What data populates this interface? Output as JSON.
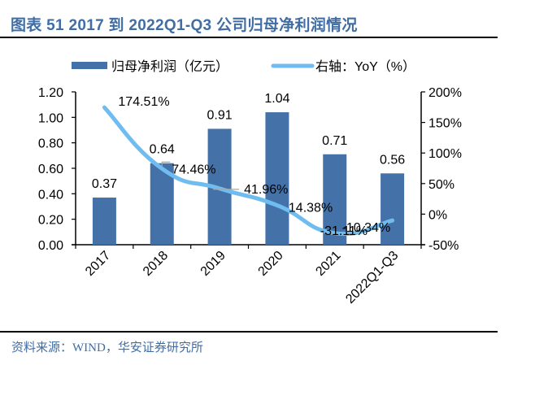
{
  "header": {
    "title": "图表 51 2017 到 2022Q1-Q3 公司归母净利润情况"
  },
  "footer": {
    "source": "资料来源：WIND，华安证券研究所"
  },
  "colors": {
    "bar": "#4472a8",
    "line": "#6fbdf0",
    "title": "#3f6da4",
    "axis": "#000000",
    "leader": "#a6a6a6"
  },
  "chart_data": {
    "type": "bar+line",
    "title": "图表 51 2017 到 2022Q1-Q3 公司归母净利润情况",
    "categories": [
      "2017",
      "2018",
      "2019",
      "2020",
      "2021",
      "2022Q1-Q3"
    ],
    "series": [
      {
        "name": "归母净利润（亿元）",
        "type": "bar",
        "axis": "left",
        "values": [
          0.37,
          0.64,
          0.91,
          1.04,
          0.71,
          0.56
        ],
        "labels": [
          "0.37",
          "0.64",
          "0.91",
          "1.04",
          "0.71",
          "0.56"
        ]
      },
      {
        "name": "右轴：YoY（%）",
        "type": "line",
        "axis": "right",
        "smooth": true,
        "values": [
          174.51,
          74.46,
          41.96,
          14.38,
          -31.11,
          -10.34
        ],
        "labels": [
          "174.51%",
          "74.46%",
          "41.96%",
          "14.38%",
          "-31.11%",
          "-10.34%"
        ]
      }
    ],
    "y_left": {
      "range": [
        0,
        1.2
      ],
      "ticks": [
        "0.00",
        "0.20",
        "0.40",
        "0.60",
        "0.80",
        "1.00",
        "1.20"
      ]
    },
    "y_right": {
      "range": [
        -50,
        200
      ],
      "ticks": [
        "-50%",
        "0%",
        "50%",
        "100%",
        "150%",
        "200%"
      ]
    },
    "xlabel": "",
    "ylabel": "",
    "grid": false,
    "legend_position": "top-center",
    "x_label_rotation": "-45"
  }
}
